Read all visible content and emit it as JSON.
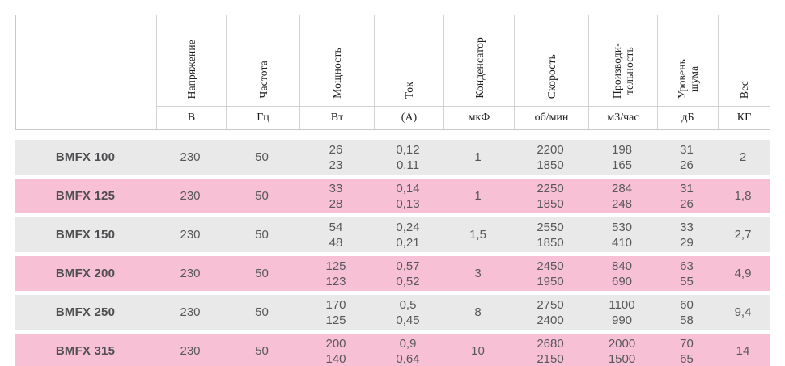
{
  "table": {
    "columns": [
      {
        "label": "",
        "unit": ""
      },
      {
        "label": "Напряжение",
        "unit": "В"
      },
      {
        "label": "Частота",
        "unit": "Гц"
      },
      {
        "label": "Мощность",
        "unit": "Вт"
      },
      {
        "label": "Ток",
        "unit": "(А)"
      },
      {
        "label": "Конденсатор",
        "unit": "мкФ"
      },
      {
        "label": "Скорость",
        "unit": "об/мин"
      },
      {
        "label": "Производи-\nтельность",
        "unit": "м3/час"
      },
      {
        "label": "Уровень\nшума",
        "unit": "дБ"
      },
      {
        "label": "Вес",
        "unit": "КГ"
      }
    ],
    "rows": [
      {
        "model": "BMFX 100",
        "voltage": "230",
        "frequency": "50",
        "power": "26\n23",
        "current": "0,12\n0,11",
        "capacitor": "1",
        "speed": "2200\n1850",
        "capacity": "198\n165",
        "noise": "31\n26",
        "weight": "2"
      },
      {
        "model": "BMFX 125",
        "voltage": "230",
        "frequency": "50",
        "power": "33\n28",
        "current": "0,14\n0,13",
        "capacitor": "1",
        "speed": "2250\n1850",
        "capacity": "284\n248",
        "noise": "31\n26",
        "weight": "1,8"
      },
      {
        "model": "BMFX 150",
        "voltage": "230",
        "frequency": "50",
        "power": "54\n48",
        "current": "0,24\n0,21",
        "capacitor": "1,5",
        "speed": "2550\n1850",
        "capacity": "530\n410",
        "noise": "33\n29",
        "weight": "2,7"
      },
      {
        "model": "BMFX 200",
        "voltage": "230",
        "frequency": "50",
        "power": "125\n123",
        "current": "0,57\n0,52",
        "capacitor": "3",
        "speed": "2450\n1950",
        "capacity": "840\n690",
        "noise": "63\n55",
        "weight": "4,9"
      },
      {
        "model": "BMFX 250",
        "voltage": "230",
        "frequency": "50",
        "power": "170\n125",
        "current": "0,5\n0,45",
        "capacitor": "8",
        "speed": "2750\n2400",
        "capacity": "1100\n990",
        "noise": "60\n58",
        "weight": "9,4"
      },
      {
        "model": "BMFX 315",
        "voltage": "230",
        "frequency": "50",
        "power": "200\n140",
        "current": "0,9\n0,64",
        "capacitor": "10",
        "speed": "2680\n2150",
        "capacity": "2000\n1500",
        "noise": "70\n65",
        "weight": "14"
      }
    ],
    "colors": {
      "row_gray": "#e9e9e9",
      "row_pink": "#f8c0d5",
      "border": "#c9c9c9",
      "data_text": "#58585b",
      "header_text": "#1f1f1f"
    }
  }
}
